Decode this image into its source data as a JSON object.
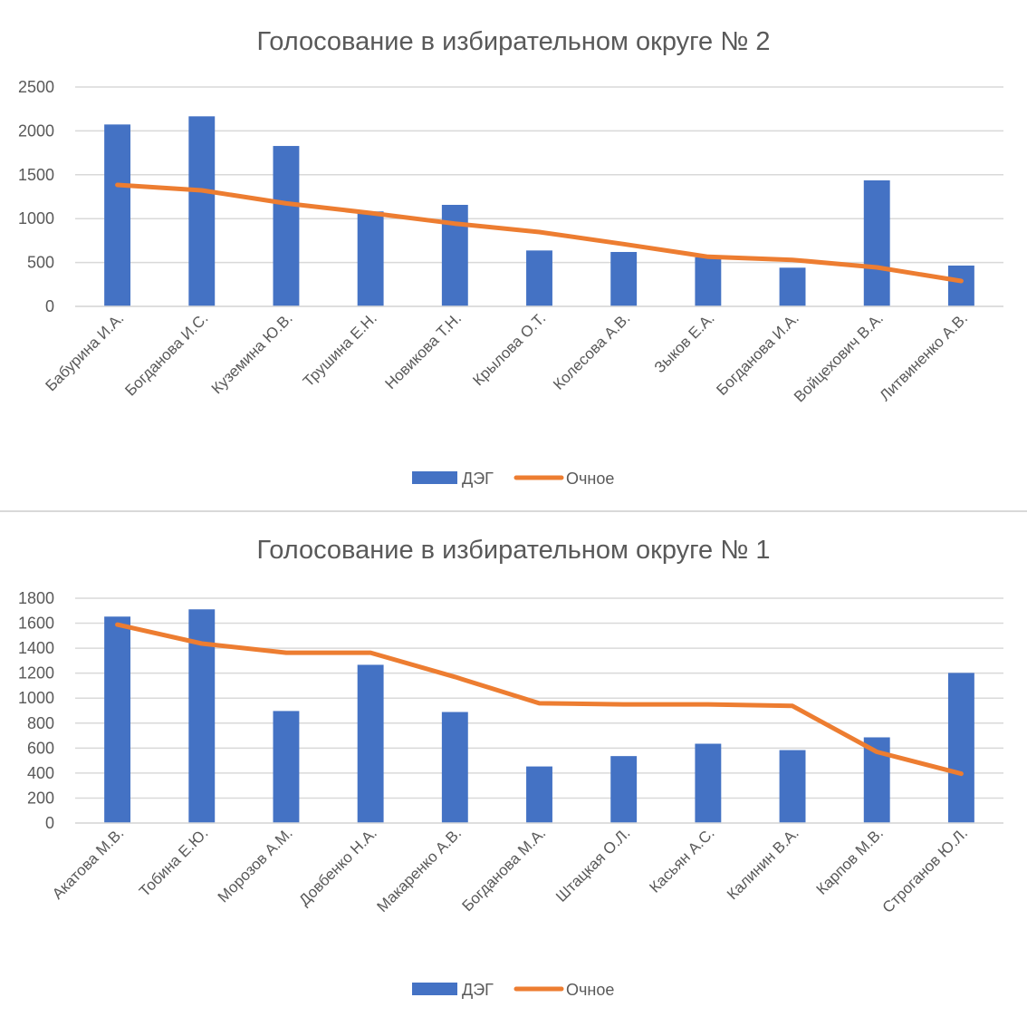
{
  "chart_data": [
    {
      "type": "bar",
      "title": "Голосование в избирательном округе № 2",
      "xlabel": "",
      "ylabel": "",
      "ylim": [
        0,
        2500
      ],
      "yticks": [
        0,
        500,
        1000,
        1500,
        2000,
        2500
      ],
      "grid": true,
      "legend_position": "bottom",
      "categories": [
        "Бабурина И.А.",
        "Богданова И.С.",
        "Куземина Ю.В.",
        "Трушина Е.Н.",
        "Новикова Т.Н.",
        "Крылова О.Т.",
        "Колесова А.В.",
        "Зыков Е.А.",
        "Богданова И.А.",
        "Войцехович В.А.",
        "Литвиненко А.В."
      ],
      "series": [
        {
          "name": "ДЭГ",
          "type": "bar",
          "color": "#4472c4",
          "values": [
            2073,
            2166,
            1828,
            1082,
            1157,
            637,
            620,
            560,
            441,
            1436,
            465
          ]
        },
        {
          "name": "Очное",
          "type": "line",
          "color": "#ed7d31",
          "values": [
            1384,
            1322,
            1174,
            1064,
            943,
            847,
            710,
            565,
            530,
            444,
            289
          ]
        }
      ]
    },
    {
      "type": "bar",
      "title": "Голосование в избирательном округе № 1",
      "xlabel": "",
      "ylabel": "",
      "ylim": [
        0,
        1800
      ],
      "yticks": [
        0,
        200,
        400,
        600,
        800,
        1000,
        1200,
        1400,
        1600,
        1800
      ],
      "grid": true,
      "legend_position": "bottom",
      "categories": [
        "Акатова М.В.",
        "Тобина Е.Ю.",
        "Морозов А.М.",
        "Довбенко Н.А.",
        "Макаренко А.В.",
        "Богданова М.А.",
        "Штацкая О.Л.",
        "Касьян А.С.",
        "Калинин В.А.",
        "Карпов М.В.",
        "Строганов Ю.Л."
      ],
      "series": [
        {
          "name": "ДЭГ",
          "type": "bar",
          "color": "#4472c4",
          "values": [
            1653,
            1711,
            897,
            1267,
            889,
            453,
            536,
            635,
            584,
            686,
            1202
          ]
        },
        {
          "name": "Очное",
          "type": "line",
          "color": "#ed7d31",
          "values": [
            1589,
            1437,
            1364,
            1364,
            1170,
            959,
            950,
            950,
            938,
            570,
            395
          ]
        }
      ]
    }
  ],
  "colors": {
    "grid": "#d9d9d9",
    "text": "#595959"
  }
}
